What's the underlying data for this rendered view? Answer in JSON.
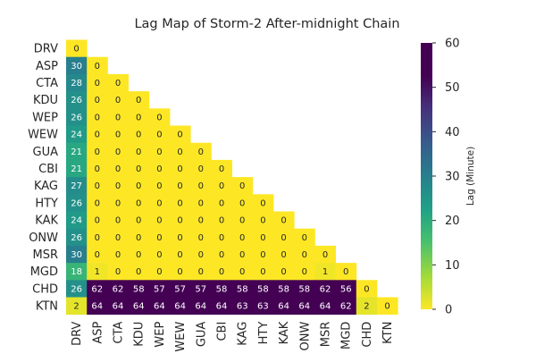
{
  "chart_data": {
    "type": "heatmap",
    "title": "Lag Map of Storm-2 After-midnight Chain",
    "labels": [
      "DRV",
      "ASP",
      "CTA",
      "KDU",
      "WEP",
      "WEW",
      "GUA",
      "CBI",
      "KAG",
      "HTY",
      "KAK",
      "ONW",
      "MSR",
      "MGD",
      "CHD",
      "KTN"
    ],
    "mask": "upper-triangle",
    "values": [
      [
        0
      ],
      [
        30,
        0
      ],
      [
        28,
        0,
        0
      ],
      [
        26,
        0,
        0,
        0
      ],
      [
        26,
        0,
        0,
        0,
        0
      ],
      [
        24,
        0,
        0,
        0,
        0,
        0
      ],
      [
        21,
        0,
        0,
        0,
        0,
        0,
        0
      ],
      [
        21,
        0,
        0,
        0,
        0,
        0,
        0,
        0
      ],
      [
        27,
        0,
        0,
        0,
        0,
        0,
        0,
        0,
        0
      ],
      [
        26,
        0,
        0,
        0,
        0,
        0,
        0,
        0,
        0,
        0
      ],
      [
        24,
        0,
        0,
        0,
        0,
        0,
        0,
        0,
        0,
        0,
        0
      ],
      [
        26,
        0,
        0,
        0,
        0,
        0,
        0,
        0,
        0,
        0,
        0,
        0
      ],
      [
        30,
        0,
        0,
        0,
        0,
        0,
        0,
        0,
        0,
        0,
        0,
        0,
        0
      ],
      [
        18,
        1,
        0,
        0,
        0,
        0,
        0,
        0,
        0,
        0,
        0,
        0,
        1,
        0
      ],
      [
        26,
        62,
        62,
        58,
        57,
        57,
        57,
        58,
        58,
        58,
        58,
        58,
        62,
        56,
        0
      ],
      [
        2,
        64,
        64,
        64,
        64,
        64,
        64,
        64,
        63,
        63,
        64,
        64,
        64,
        62,
        2,
        0
      ]
    ],
    "colorbar": {
      "label": "Lag (Minute)",
      "min": 0,
      "max": 60,
      "ticks": [
        0,
        10,
        20,
        30,
        40,
        50,
        60
      ],
      "colormap": "viridis"
    }
  }
}
